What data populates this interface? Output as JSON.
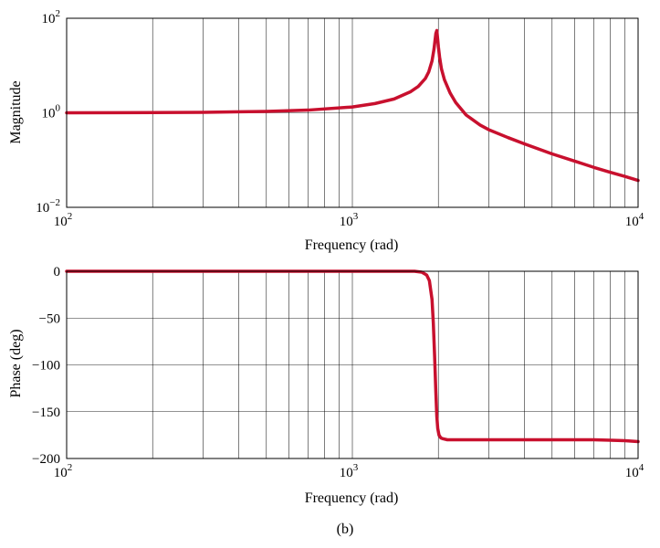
{
  "caption": "(b)",
  "colors": {
    "curve": "#c8102e",
    "grid": "#000000"
  },
  "chart_data": [
    {
      "type": "line",
      "panel": "magnitude",
      "xlabel": "Frequency (rad)",
      "ylabel": "Magnitude",
      "xscale": "log",
      "yscale": "log",
      "xlim": [
        100,
        10000
      ],
      "ylim": [
        0.01,
        100
      ],
      "x_ticks": [
        {
          "value": 100,
          "base": "10",
          "exp": "2"
        },
        {
          "value": 1000,
          "base": "10",
          "exp": "3"
        },
        {
          "value": 10000,
          "base": "10",
          "exp": "4"
        }
      ],
      "y_ticks": [
        {
          "value": 100,
          "base": "10",
          "exp": "2"
        },
        {
          "value": 1,
          "base": "10",
          "exp": "0"
        },
        {
          "value": 0.01,
          "base": "10",
          "exp": "−2"
        }
      ],
      "grid": true,
      "series": [
        {
          "x": [
            100,
            200,
            300,
            500,
            700,
            1000,
            1200,
            1400,
            1600,
            1700,
            1800,
            1850,
            1900,
            1930,
            1960,
            1975,
            1990,
            2000,
            2020,
            2050,
            2100,
            2200,
            2300,
            2500,
            2800,
            3000,
            3500,
            4000,
            5000,
            6000,
            7000,
            8000,
            9000,
            10000
          ],
          "y": [
            1.0,
            1.01,
            1.02,
            1.07,
            1.14,
            1.33,
            1.57,
            1.96,
            2.8,
            3.6,
            5.3,
            7.3,
            12.5,
            22,
            48,
            55,
            35,
            25,
            15,
            8.5,
            5.0,
            2.6,
            1.65,
            0.9,
            0.55,
            0.44,
            0.3,
            0.22,
            0.135,
            0.095,
            0.07,
            0.055,
            0.045,
            0.037
          ]
        }
      ]
    },
    {
      "type": "line",
      "panel": "phase",
      "xlabel": "Frequency (rad)",
      "ylabel": "Phase (deg)",
      "xscale": "log",
      "yscale": "linear",
      "xlim": [
        100,
        10000
      ],
      "ylim": [
        -200,
        0
      ],
      "x_ticks": [
        {
          "value": 100,
          "base": "10",
          "exp": "2"
        },
        {
          "value": 1000,
          "base": "10",
          "exp": "3"
        },
        {
          "value": 10000,
          "base": "10",
          "exp": "4"
        }
      ],
      "y_ticks": [
        {
          "value": 0,
          "label": "0"
        },
        {
          "value": -50,
          "label": "−50"
        },
        {
          "value": -100,
          "label": "−100"
        },
        {
          "value": -150,
          "label": "−150"
        },
        {
          "value": -200,
          "label": "−200"
        }
      ],
      "grid": true,
      "series": [
        {
          "x": [
            100,
            500,
            1000,
            1500,
            1650,
            1750,
            1820,
            1860,
            1900,
            1920,
            1940,
            1960,
            1975,
            1990,
            2010,
            2040,
            2080,
            2150,
            2300,
            2600,
            3000,
            5000,
            7000,
            8000,
            9000,
            10000
          ],
          "y": [
            0,
            0,
            0,
            0,
            0,
            -1,
            -4,
            -10,
            -30,
            -55,
            -90,
            -130,
            -155,
            -168,
            -175,
            -178,
            -179,
            -180,
            -180,
            -180,
            -180,
            -180,
            -180,
            -180.5,
            -181,
            -182
          ]
        }
      ]
    }
  ]
}
